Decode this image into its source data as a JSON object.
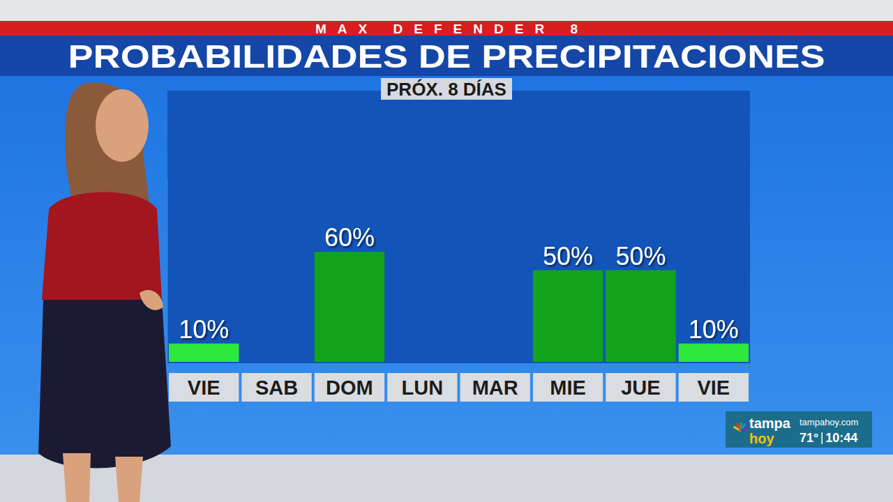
{
  "chart_data": {
    "type": "bar",
    "supertitle": "MAX DEFENDER 8",
    "title": "PROBABILIDADES DE PRECIPITACIONES",
    "subtitle": "PRÓX. 8 DÍAS",
    "categories": [
      "VIE",
      "SAB",
      "DOM",
      "LUN",
      "MAR",
      "MIE",
      "JUE",
      "VIE"
    ],
    "values": [
      10,
      null,
      60,
      null,
      null,
      50,
      50,
      10
    ],
    "value_labels": [
      "10%",
      null,
      "60%",
      null,
      null,
      "50%",
      "50%",
      "10%"
    ],
    "colors": [
      "#2ee83c",
      null,
      "#12a31c",
      null,
      null,
      "#12a31c",
      "#12a31c",
      "#2ee83c"
    ],
    "ylim": [
      0,
      100
    ],
    "yticks": [],
    "grid": false,
    "data_labels": true,
    "tick_labels": "x"
  },
  "overlay": {
    "logo_top": "tampa",
    "logo_bottom": "hoy",
    "site": "tampahoy.com",
    "temperature": "71°",
    "time": "10:44"
  }
}
